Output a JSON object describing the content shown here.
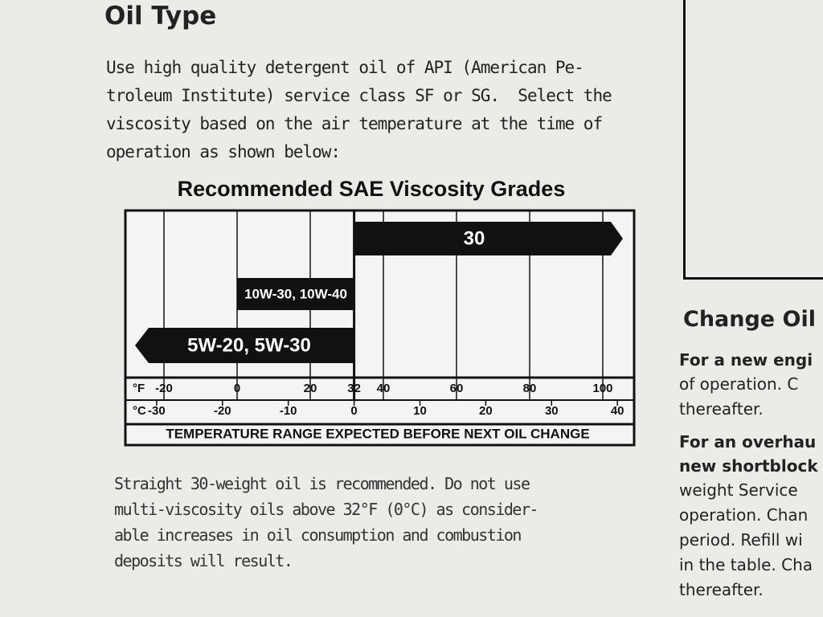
{
  "heading": "Oil Type",
  "intro": [
    "Use high quality detergent oil of API (American Pe-",
    "troleum Institute) service class SF or SG.  Select the",
    "viscosity based on the air temperature at the time of",
    "operation as shown below:"
  ],
  "chart": {
    "title": "Recommended SAE Viscosity Grades",
    "bars": [
      "30",
      "10W-30, 10W-40",
      "5W-20, 5W-30"
    ],
    "fahrenheit": {
      "unit": "°F",
      "ticks": [
        -20,
        0,
        20,
        32,
        40,
        60,
        80,
        100
      ]
    },
    "celsius": {
      "unit": "°C",
      "ticks": [
        -30,
        -20,
        -10,
        0,
        10,
        20,
        30,
        40
      ]
    },
    "footer": "TEMPERATURE RANGE EXPECTED BEFORE NEXT OIL CHANGE"
  },
  "note": [
    "Straight 30-weight oil is recommended. Do not use",
    "multi-viscosity oils above 32°F (0°C) as consider-",
    "able increases in oil consumption and combustion",
    "deposits will result."
  ],
  "side": {
    "heading": "Change Oil",
    "paragraphs": [
      {
        "bold": [
          "For a new engi"
        ],
        "lines": [
          "of operation. C",
          "thereafter."
        ]
      },
      {
        "bold": [
          "For an overhau",
          "new shortblock"
        ],
        "lines": [
          "weight Service",
          "operation. Chan",
          "period. Refill wi",
          "in the table. Cha",
          "thereafter."
        ]
      }
    ]
  }
}
